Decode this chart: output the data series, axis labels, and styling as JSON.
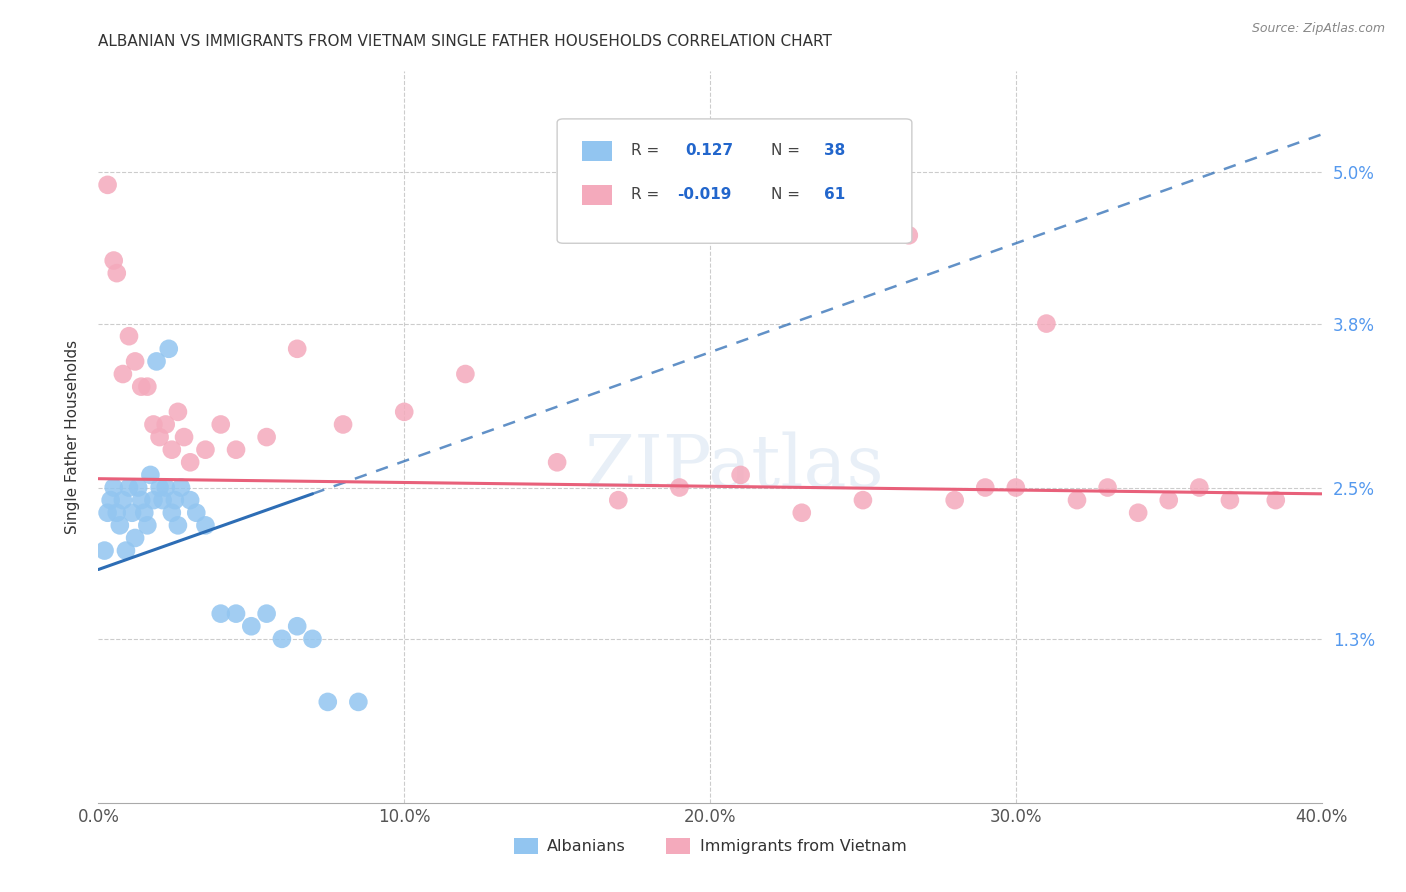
{
  "title": "ALBANIAN VS IMMIGRANTS FROM VIETNAM SINGLE FATHER HOUSEHOLDS CORRELATION CHART",
  "source": "Source: ZipAtlas.com",
  "ylabel": "Single Father Households",
  "xlabel_ticks": [
    "0.0%",
    "10.0%",
    "20.0%",
    "30.0%",
    "40.0%"
  ],
  "ytick_labels": [
    "1.3%",
    "2.5%",
    "3.8%",
    "5.0%"
  ],
  "ytick_values": [
    1.3,
    2.5,
    3.8,
    5.0
  ],
  "xlim": [
    0.0,
    40.0
  ],
  "ylim": [
    0.0,
    5.8
  ],
  "r_albanian": 0.127,
  "n_albanian": 38,
  "r_vietnam": -0.019,
  "n_vietnam": 61,
  "color_albanian": "#92C5F0",
  "color_vietnam": "#F4AABC",
  "trendline_albanian": "#2D6DB5",
  "trendline_vietnam": "#E8607A",
  "watermark": "ZIPatlas",
  "legend_labels": [
    "Albanians",
    "Immigrants from Vietnam"
  ],
  "albanian_x": [
    0.2,
    0.3,
    0.4,
    0.5,
    0.6,
    0.7,
    0.8,
    0.9,
    1.0,
    1.1,
    1.2,
    1.3,
    1.4,
    1.5,
    1.6,
    1.7,
    1.8,
    1.9,
    2.0,
    2.1,
    2.2,
    2.3,
    2.4,
    2.5,
    2.6,
    2.7,
    3.0,
    3.2,
    3.5,
    4.0,
    4.5,
    5.0,
    5.5,
    6.0,
    6.5,
    7.0,
    7.5,
    8.5
  ],
  "albanian_y": [
    2.0,
    2.3,
    2.4,
    2.5,
    2.3,
    2.2,
    2.4,
    2.0,
    2.5,
    2.3,
    2.1,
    2.5,
    2.4,
    2.3,
    2.2,
    2.6,
    2.4,
    3.5,
    2.5,
    2.4,
    2.5,
    3.6,
    2.3,
    2.4,
    2.2,
    2.5,
    2.4,
    2.3,
    2.2,
    1.5,
    1.5,
    1.4,
    1.5,
    1.3,
    1.4,
    1.3,
    0.8,
    0.8
  ],
  "vietnam_x": [
    0.3,
    0.5,
    0.6,
    0.8,
    1.0,
    1.2,
    1.4,
    1.6,
    1.8,
    2.0,
    2.2,
    2.4,
    2.6,
    2.8,
    3.0,
    3.5,
    4.0,
    4.5,
    5.5,
    6.5,
    8.0,
    10.0,
    12.0,
    15.0,
    17.0,
    19.0,
    21.0,
    23.0,
    25.0,
    26.5,
    28.0,
    29.0,
    30.0,
    31.0,
    32.0,
    33.0,
    34.0,
    35.0,
    36.0,
    37.0,
    38.5
  ],
  "vietnam_y": [
    4.9,
    4.3,
    4.2,
    3.4,
    3.7,
    3.5,
    3.3,
    3.3,
    3.0,
    2.9,
    3.0,
    2.8,
    3.1,
    2.9,
    2.7,
    2.8,
    3.0,
    2.8,
    2.9,
    3.6,
    3.0,
    3.1,
    3.4,
    2.7,
    2.4,
    2.5,
    2.6,
    2.3,
    2.4,
    4.5,
    2.4,
    2.5,
    2.5,
    3.8,
    2.4,
    2.5,
    2.3,
    2.4,
    2.5,
    2.4,
    2.4
  ],
  "trendline_alb_x0": 0.0,
  "trendline_alb_y0": 1.85,
  "trendline_alb_x1": 7.0,
  "trendline_alb_y1": 2.45,
  "trendline_alb_dash_x0": 7.0,
  "trendline_alb_dash_y0": 2.45,
  "trendline_alb_dash_x1": 40.0,
  "trendline_alb_dash_y1": 5.3,
  "trendline_vie_x0": 0.0,
  "trendline_vie_y0": 2.57,
  "trendline_vie_x1": 40.0,
  "trendline_vie_y1": 2.45
}
